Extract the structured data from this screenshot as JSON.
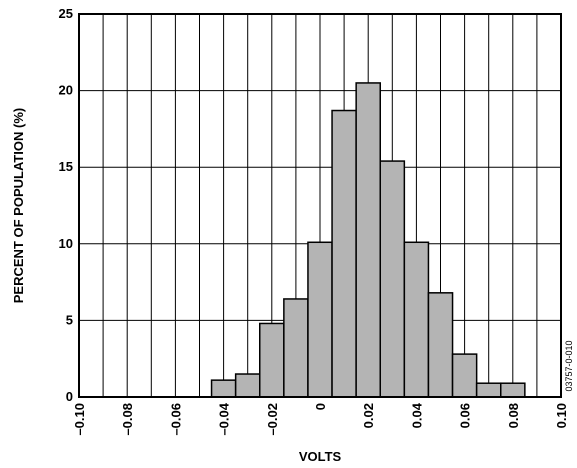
{
  "chart_data": {
    "type": "bar",
    "xlabel": "VOLTS",
    "ylabel": "PERCENT OF POPULATION (%)",
    "x_ticks": [
      "–0.10",
      "–0.08",
      "–0.06",
      "–0.04",
      "–0.02",
      "0",
      "0.02",
      "0.04",
      "0.06",
      "0.08",
      "0.10"
    ],
    "y_ticks": [
      "0",
      "5",
      "10",
      "15",
      "20",
      "25"
    ],
    "xlim": [
      -0.1,
      0.1
    ],
    "ylim": [
      0,
      25
    ],
    "bin_width": 0.01,
    "bins": [
      {
        "x_start": -0.045,
        "value": 1.1
      },
      {
        "x_start": -0.035,
        "value": 1.5
      },
      {
        "x_start": -0.025,
        "value": 4.8
      },
      {
        "x_start": -0.015,
        "value": 6.4
      },
      {
        "x_start": -0.005,
        "value": 10.1
      },
      {
        "x_start": 0.005,
        "value": 18.7
      },
      {
        "x_start": 0.015,
        "value": 20.5
      },
      {
        "x_start": 0.025,
        "value": 15.4
      },
      {
        "x_start": 0.035,
        "value": 10.1
      },
      {
        "x_start": 0.045,
        "value": 6.8
      },
      {
        "x_start": 0.055,
        "value": 2.8
      },
      {
        "x_start": 0.065,
        "value": 0.9
      },
      {
        "x_start": 0.075,
        "value": 0.9
      }
    ],
    "grid": true,
    "bar_color": "#b4b4b4",
    "edge_color": "#000000",
    "figure_id": "03757-0-010"
  }
}
